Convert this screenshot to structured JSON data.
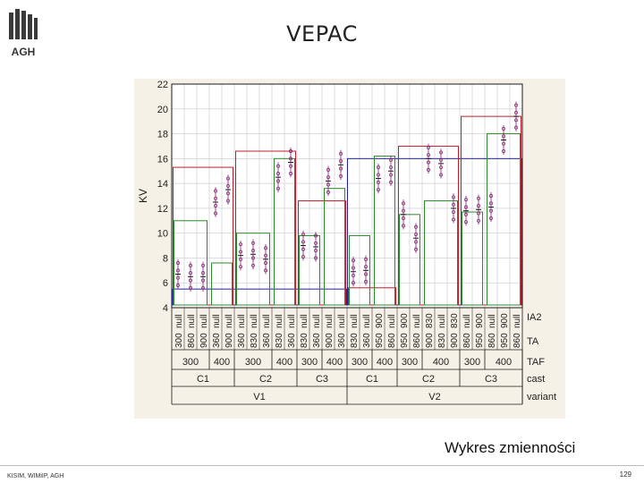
{
  "header": {
    "logo_text": "AGH",
    "title": "VEPAC"
  },
  "caption": "Wykres zmienności",
  "footer": {
    "left": "KISIM, WIMiIP, AGH",
    "page_number": "129"
  },
  "colors": {
    "chart_bg": "#f6f1e6",
    "plot_bg": "#ffffff",
    "grid": "#c8c8d0",
    "axis": "#1a1a1a",
    "variant_box": "#2222a0",
    "cast_box": "#c0202a",
    "taf_box": "#2a8a2a",
    "ta_box": "#7a2070",
    "points": "#8a1a6a"
  },
  "chart_data": {
    "type": "variability",
    "title": "",
    "ylabel": "KV",
    "ylim": [
      4,
      22
    ],
    "yticks": [
      4,
      6,
      8,
      10,
      12,
      14,
      16,
      18,
      20,
      22
    ],
    "grid": true,
    "row_labels": [
      "IA2",
      "TA",
      "TAF",
      "cast",
      "variant"
    ],
    "variants": [
      "V1",
      "V2"
    ],
    "casts": [
      "C1",
      "C2",
      "C3",
      "C1",
      "C2",
      "C3"
    ],
    "tafs": [
      "300",
      "400",
      "300",
      "400",
      "300",
      "400",
      "300",
      "400",
      "300",
      "400",
      "300",
      "400"
    ],
    "tas": [
      "300",
      "860",
      "900",
      "360",
      "900",
      "360",
      "830",
      "360",
      "830",
      "360",
      "830",
      "360",
      "900",
      "360",
      "830",
      "360",
      "950",
      "860",
      "950",
      "860",
      "900",
      "830",
      "900",
      "860",
      "950",
      "860",
      "950",
      "860"
    ],
    "ia2": [
      "null",
      "null",
      "null",
      "null",
      "null",
      "null",
      "null",
      "null",
      "null",
      "null",
      "null",
      "null",
      "null",
      "null",
      "null",
      "null",
      "900",
      "null",
      "900",
      "null",
      "830",
      "null",
      "830",
      "null",
      "900",
      "null",
      "900",
      "null"
    ],
    "group_counts": {
      "variant": [
        14,
        14
      ],
      "cast": [
        5,
        5,
        4,
        4,
        5,
        5
      ],
      "taf": [
        3,
        2,
        3,
        2,
        2,
        2,
        2,
        2,
        2,
        3,
        2,
        3
      ]
    },
    "means": {
      "variant": [
        5.5,
        16.0
      ],
      "cast": [
        15.3,
        16.6,
        12.6,
        5.6,
        17.0,
        19.4
      ],
      "taf": [
        11.0,
        7.6,
        10.0,
        16.0,
        9.8,
        13.6,
        9.8,
        16.2,
        11.5,
        12.6,
        11.7,
        18.0
      ],
      "ta": [
        6.7,
        6.5,
        6.5,
        12.5,
        13.5,
        8.2,
        8.3,
        7.9,
        14.5,
        15.7,
        9.0,
        8.9,
        14.2,
        15.5,
        6.9,
        7.0,
        14.4,
        15.0,
        11.5,
        9.6,
        16.0,
        15.6,
        12.0,
        11.8,
        11.9,
        12.1,
        17.5,
        19.4
      ]
    }
  }
}
